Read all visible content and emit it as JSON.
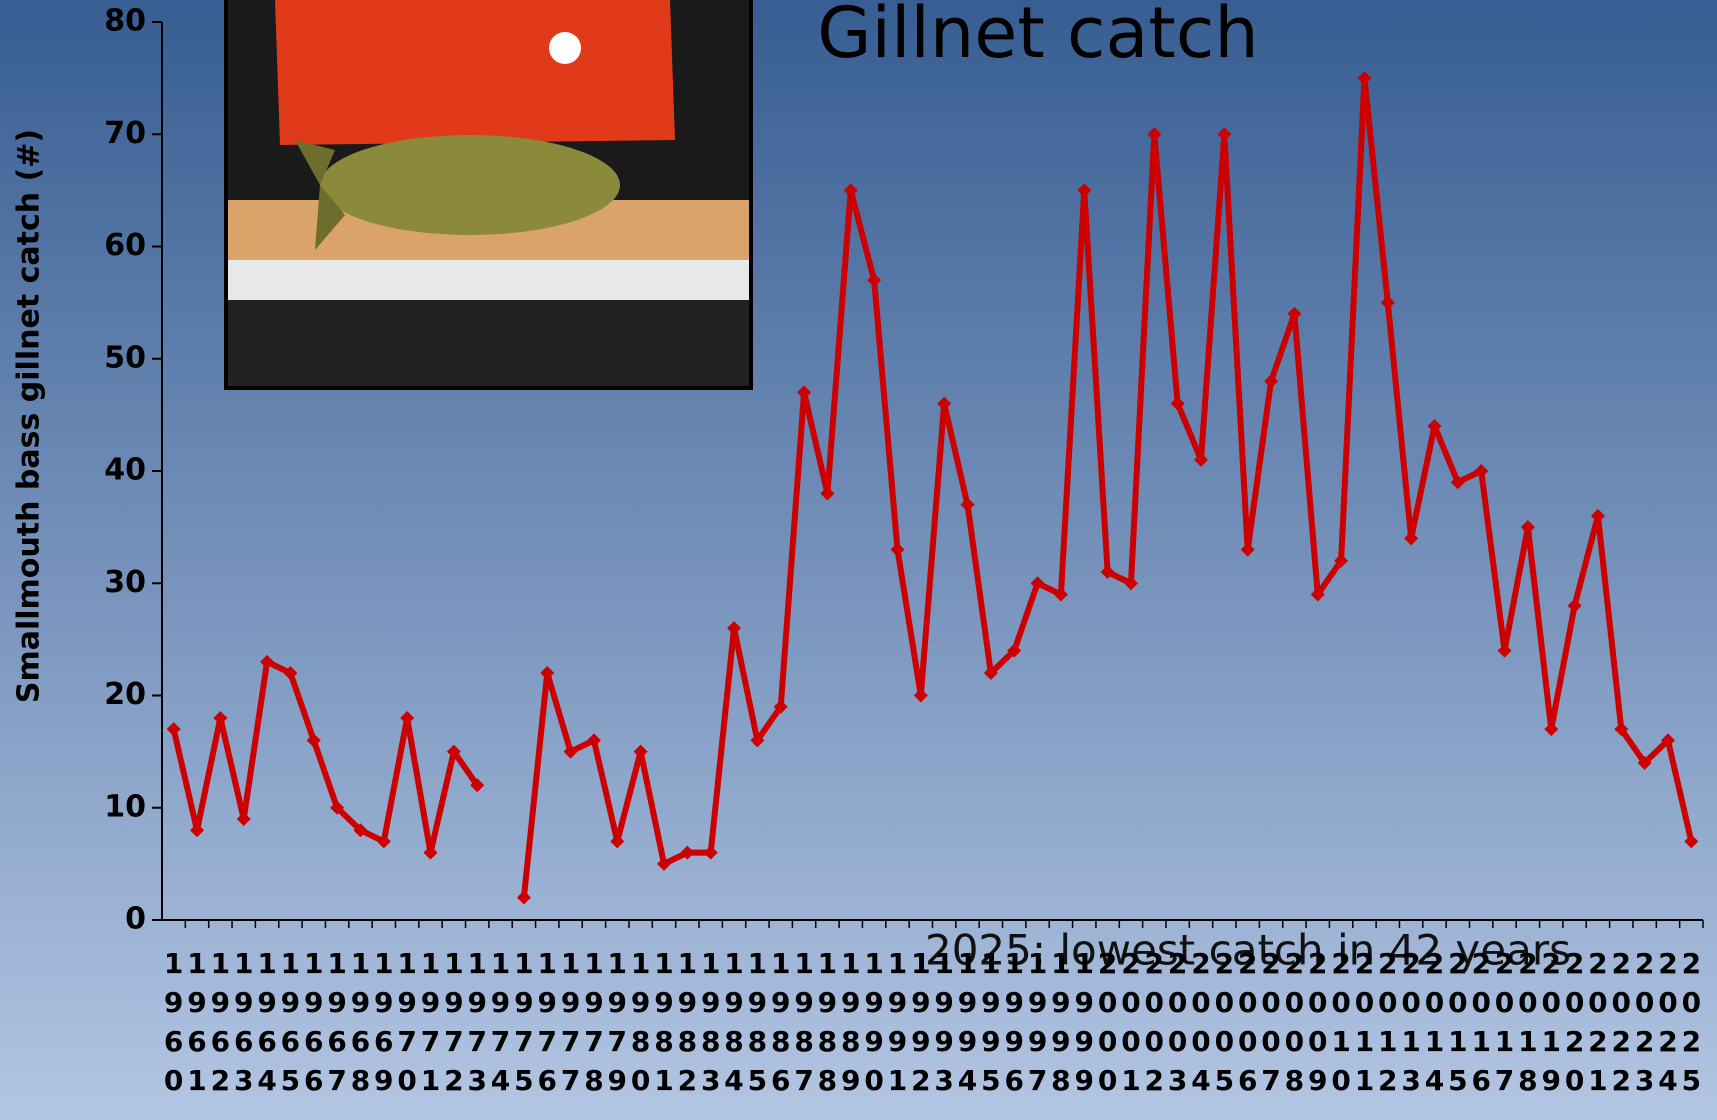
{
  "chart_data": {
    "type": "line",
    "title": "Gillnet catch",
    "y_label": "Smallmouth bass gillnet catch (#)",
    "annotation": "2025: lowest catch in 42 years",
    "categories": [
      "1960",
      "1961",
      "1962",
      "1963",
      "1964",
      "1965",
      "1966",
      "1967",
      "1968",
      "1969",
      "1970",
      "1971",
      "1972",
      "1973",
      "1974",
      "1975",
      "1976",
      "1977",
      "1978",
      "1979",
      "1980",
      "1981",
      "1982",
      "1983",
      "1984",
      "1985",
      "1986",
      "1987",
      "1988",
      "1989",
      "1990",
      "1991",
      "1992",
      "1993",
      "1994",
      "1995",
      "1996",
      "1997",
      "1998",
      "1999",
      "2000",
      "2001",
      "2002",
      "2003",
      "2004",
      "2005",
      "2006",
      "2007",
      "2008",
      "2009",
      "2010",
      "2011",
      "2012",
      "2013",
      "2014",
      "2015",
      "2016",
      "2017",
      "2018",
      "2019",
      "2020",
      "2021",
      "2022",
      "2023",
      "2024",
      "2025"
    ],
    "values": [
      17,
      8,
      18,
      9,
      23,
      22,
      16,
      10,
      8,
      7,
      18,
      6,
      15,
      12,
      null,
      2,
      22,
      15,
      16,
      7,
      15,
      5,
      6,
      6,
      26,
      16,
      19,
      47,
      38,
      65,
      57,
      33,
      20,
      46,
      37,
      22,
      24,
      30,
      29,
      65,
      31,
      30,
      70,
      46,
      41,
      70,
      33,
      48,
      54,
      29,
      32,
      75,
      55,
      34,
      44,
      39,
      40,
      24,
      35,
      17,
      28,
      36,
      17,
      14,
      16,
      7
    ],
    "color": "#cc0000",
    "ylim": [
      0,
      80
    ],
    "yticks": [
      0,
      10,
      20,
      30,
      40,
      50,
      60,
      70,
      80
    ]
  }
}
